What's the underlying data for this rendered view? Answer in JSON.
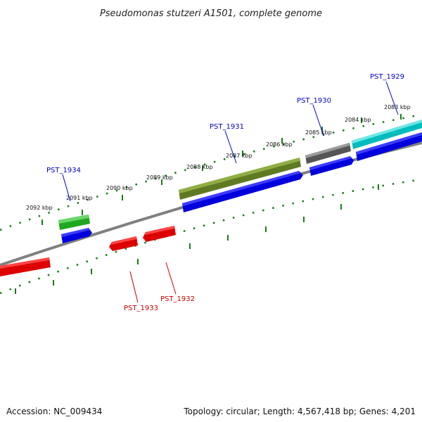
{
  "title": "Pseudomonas stutzeri A1501, complete genome",
  "colors": {
    "backbone": "#808080",
    "tick": "#1a7a1a",
    "forward_label": "#0000c8",
    "reverse_label": "#cc0000"
  },
  "scale_ticks": [
    {
      "label": "2083 kbp"
    },
    {
      "label": "2084 kbp"
    },
    {
      "label": "2085 kbp"
    },
    {
      "label": "2086 kbp"
    },
    {
      "label": "2087 kbp"
    },
    {
      "label": "2088 kbp"
    },
    {
      "label": "2089 kbp"
    },
    {
      "label": "2090 kbp"
    },
    {
      "label": "2091 kbp"
    },
    {
      "label": "2092 kbp"
    }
  ],
  "gene_labels": [
    {
      "name": "PST_1929",
      "strand": "forward"
    },
    {
      "name": "PST_1930",
      "strand": "forward"
    },
    {
      "name": "PST_1931",
      "strand": "forward"
    },
    {
      "name": "PST_1934",
      "strand": "forward"
    },
    {
      "name": "PST_1933",
      "strand": "reverse"
    },
    {
      "name": "PST_1932",
      "strand": "reverse"
    }
  ],
  "footer": {
    "accession": "Accession: NC_009434",
    "summary": "Topology: circular; Length: 4,567,418 bp; Genes: 4,201"
  }
}
